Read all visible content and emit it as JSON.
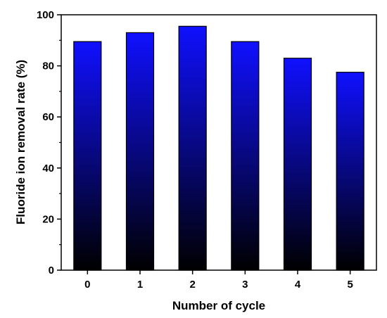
{
  "chart_data": {
    "type": "bar",
    "title": "",
    "xlabel": "Number of cycle",
    "ylabel": "Fluoride ion removal rate (%)",
    "categories": [
      "0",
      "1",
      "2",
      "3",
      "4",
      "5"
    ],
    "values": [
      89.5,
      93.0,
      95.5,
      89.5,
      83.0,
      77.5
    ],
    "ylim": [
      0,
      100
    ],
    "yticks": [
      "0",
      "20",
      "40",
      "60",
      "80",
      "100"
    ],
    "grid": false,
    "legend": "none",
    "bar_gradient": {
      "top": "#1010ff",
      "bottom": "#000000"
    },
    "bar_outline": "#000000"
  }
}
